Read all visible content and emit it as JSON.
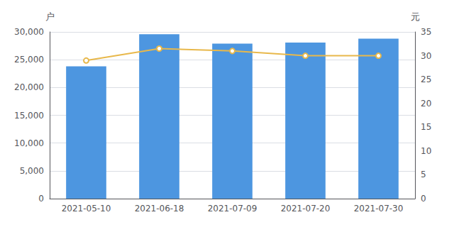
{
  "chart_data": {
    "type": "bar",
    "categories": [
      "2021-05-10",
      "2021-06-18",
      "2021-07-09",
      "2021-07-20",
      "2021-07-30"
    ],
    "series": [
      {
        "type": "bar",
        "color": "#4d96e0",
        "values": [
          23800,
          29600,
          27900,
          28100,
          28800
        ]
      },
      {
        "type": "line",
        "color": "#e8b84b",
        "marker": "circle",
        "axis": "y2",
        "values": [
          29.0,
          31.5,
          31.0,
          30.0,
          30.0
        ]
      }
    ],
    "ylabel": "户",
    "y2label": "元",
    "ylim": [
      0,
      30000
    ],
    "yticks": [
      0,
      {
        "value": 5000,
        "label": "5,000"
      },
      {
        "value": 10000,
        "label": "10,000"
      },
      {
        "value": 15000,
        "label": "15,000"
      },
      {
        "value": 20000,
        "label": "20,000"
      },
      {
        "value": 25000,
        "label": "25,000"
      },
      {
        "value": 30000,
        "label": "30,000"
      }
    ],
    "y2lim": [
      0,
      35
    ],
    "y2ticks": [
      0,
      5,
      10,
      15,
      20,
      25,
      30,
      35
    ],
    "grid": true
  }
}
